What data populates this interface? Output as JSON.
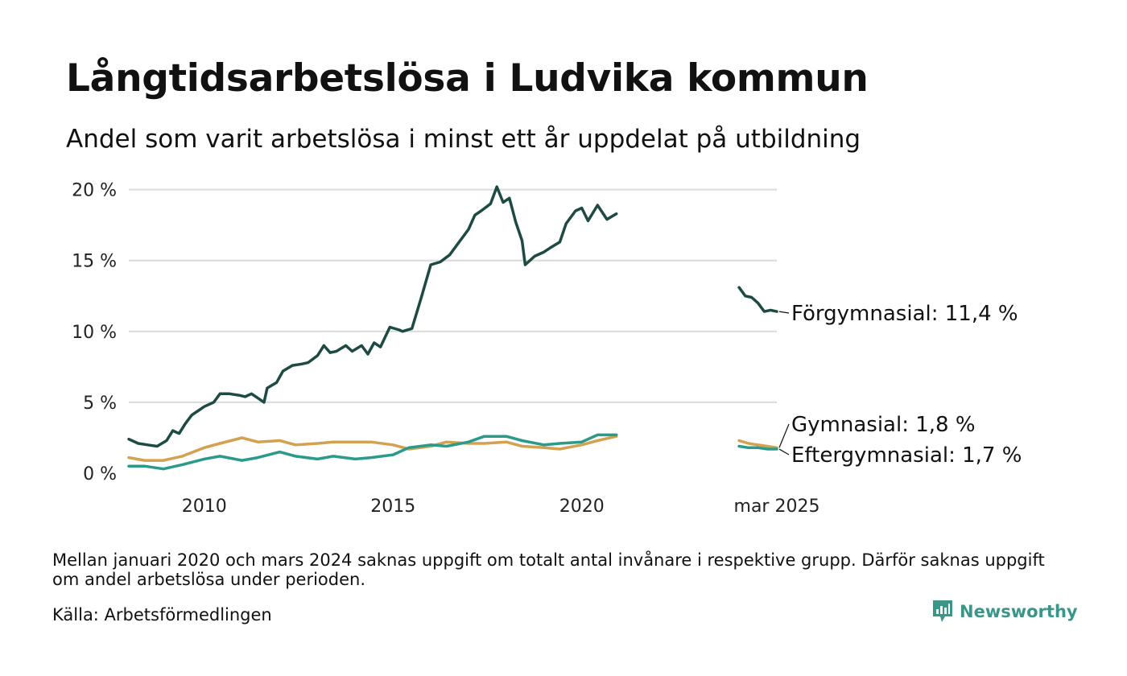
{
  "header": {
    "title": "Långtidsarbetslösa i Ludvika kommun",
    "subtitle": "Andel som varit arbetslösa i minst ett år uppdelat på utbildning"
  },
  "footer": {
    "note": "Mellan januari 2020 och mars 2024 saknas uppgift om totalt antal invånare i respektive grupp. Därför saknas uppgift om andel arbetslösa under perioden.",
    "source": "Källa: Arbetsförmedlingen",
    "brand": "Newsworthy",
    "brand_color": "#3a9688"
  },
  "chart_data": {
    "type": "line",
    "title": "Långtidsarbetslösa i Ludvika kommun",
    "subtitle": "Andel som varit arbetslösa i minst ett år uppdelat på utbildning",
    "xlabel": "",
    "ylabel": "",
    "y_ticks": [
      {
        "value": 0,
        "label": "0 %"
      },
      {
        "value": 5,
        "label": "5 %"
      },
      {
        "value": 10,
        "label": "10 %"
      },
      {
        "value": 15,
        "label": "15 %"
      },
      {
        "value": 20,
        "label": "20 %"
      }
    ],
    "x_ticks": [
      {
        "value": "2010-01",
        "label": "2010"
      },
      {
        "value": "2015-01",
        "label": "2015"
      },
      {
        "value": "2020-01",
        "label": "2020"
      },
      {
        "value": "2025-03",
        "label": "mar 2025"
      }
    ],
    "xlim": [
      "2008-01",
      "2025-03"
    ],
    "ylim": [
      0,
      21
    ],
    "grid": "horizontal",
    "legend": "direct labels at right end of lines",
    "series": [
      {
        "name": "Förgymnasial",
        "end_label": "Förgymnasial: 11,4 %",
        "color": "#1e4a44",
        "segments": [
          [
            [
              "2008-01",
              2.4
            ],
            [
              "2008-04",
              2.1
            ],
            [
              "2008-07",
              2.0
            ],
            [
              "2008-10",
              1.9
            ],
            [
              "2009-01",
              2.3
            ],
            [
              "2009-03",
              3.0
            ],
            [
              "2009-05",
              2.8
            ],
            [
              "2009-07",
              3.5
            ],
            [
              "2009-09",
              4.1
            ],
            [
              "2009-11",
              4.4
            ],
            [
              "2010-01",
              4.7
            ],
            [
              "2010-04",
              5.0
            ],
            [
              "2010-06",
              5.6
            ],
            [
              "2010-09",
              5.6
            ],
            [
              "2010-12",
              5.5
            ],
            [
              "2011-02",
              5.4
            ],
            [
              "2011-04",
              5.6
            ],
            [
              "2011-06",
              5.3
            ],
            [
              "2011-08",
              5.0
            ],
            [
              "2011-09",
              6.0
            ],
            [
              "2011-12",
              6.4
            ],
            [
              "2012-02",
              7.2
            ],
            [
              "2012-05",
              7.6
            ],
            [
              "2012-08",
              7.7
            ],
            [
              "2012-10",
              7.8
            ],
            [
              "2013-01",
              8.3
            ],
            [
              "2013-03",
              9.0
            ],
            [
              "2013-05",
              8.5
            ],
            [
              "2013-07",
              8.6
            ],
            [
              "2013-10",
              9.0
            ],
            [
              "2013-12",
              8.6
            ],
            [
              "2014-03",
              9.0
            ],
            [
              "2014-05",
              8.4
            ],
            [
              "2014-07",
              9.2
            ],
            [
              "2014-09",
              8.9
            ],
            [
              "2014-12",
              10.3
            ],
            [
              "2015-03",
              10.1
            ],
            [
              "2015-04",
              10.0
            ],
            [
              "2015-07",
              10.2
            ],
            [
              "2015-10",
              12.4
            ],
            [
              "2016-01",
              14.7
            ],
            [
              "2016-04",
              14.9
            ],
            [
              "2016-07",
              15.4
            ],
            [
              "2016-10",
              16.3
            ],
            [
              "2017-01",
              17.2
            ],
            [
              "2017-03",
              18.2
            ],
            [
              "2017-05",
              18.5
            ],
            [
              "2017-08",
              19.0
            ],
            [
              "2017-10",
              20.2
            ],
            [
              "2017-12",
              19.1
            ],
            [
              "2018-02",
              19.4
            ],
            [
              "2018-04",
              17.7
            ],
            [
              "2018-06",
              16.4
            ],
            [
              "2018-07",
              14.7
            ],
            [
              "2018-10",
              15.3
            ],
            [
              "2019-01",
              15.6
            ],
            [
              "2019-03",
              15.9
            ],
            [
              "2019-06",
              16.3
            ],
            [
              "2019-08",
              17.6
            ],
            [
              "2019-11",
              18.5
            ],
            [
              "2020-01",
              18.7
            ],
            [
              "2020-03",
              17.8
            ],
            [
              "2020-06",
              18.9
            ],
            [
              "2020-09",
              17.9
            ],
            [
              "2020-12",
              18.3
            ]
          ],
          [
            [
              "2024-03",
              13.1
            ],
            [
              "2024-05",
              12.5
            ],
            [
              "2024-07",
              12.4
            ],
            [
              "2024-09",
              12.0
            ],
            [
              "2024-11",
              11.4
            ],
            [
              "2025-01",
              11.5
            ],
            [
              "2025-03",
              11.4
            ]
          ]
        ]
      },
      {
        "name": "Gymnasial",
        "end_label": "Gymnasial:  1,8 %",
        "color": "#d4a150",
        "segments": [
          [
            [
              "2008-01",
              1.1
            ],
            [
              "2008-06",
              0.9
            ],
            [
              "2008-12",
              0.9
            ],
            [
              "2009-06",
              1.2
            ],
            [
              "2010-01",
              1.8
            ],
            [
              "2010-06",
              2.1
            ],
            [
              "2011-01",
              2.5
            ],
            [
              "2011-06",
              2.2
            ],
            [
              "2012-01",
              2.3
            ],
            [
              "2012-06",
              2.0
            ],
            [
              "2013-01",
              2.1
            ],
            [
              "2013-06",
              2.2
            ],
            [
              "2014-01",
              2.2
            ],
            [
              "2014-06",
              2.2
            ],
            [
              "2015-01",
              2.0
            ],
            [
              "2015-06",
              1.7
            ],
            [
              "2016-01",
              1.9
            ],
            [
              "2016-06",
              2.2
            ],
            [
              "2017-01",
              2.1
            ],
            [
              "2017-06",
              2.1
            ],
            [
              "2018-01",
              2.2
            ],
            [
              "2018-06",
              1.9
            ],
            [
              "2019-01",
              1.8
            ],
            [
              "2019-06",
              1.7
            ],
            [
              "2020-01",
              2.0
            ],
            [
              "2020-06",
              2.3
            ],
            [
              "2020-12",
              2.6
            ]
          ],
          [
            [
              "2024-03",
              2.3
            ],
            [
              "2024-06",
              2.1
            ],
            [
              "2024-09",
              2.0
            ],
            [
              "2024-12",
              1.9
            ],
            [
              "2025-03",
              1.8
            ]
          ]
        ]
      },
      {
        "name": "Eftergymnasial",
        "end_label": "Eftergymnasial:  1,7 %",
        "color": "#2a9a8a",
        "segments": [
          [
            [
              "2008-01",
              0.5
            ],
            [
              "2008-06",
              0.5
            ],
            [
              "2008-12",
              0.3
            ],
            [
              "2009-06",
              0.6
            ],
            [
              "2010-01",
              1.0
            ],
            [
              "2010-06",
              1.2
            ],
            [
              "2011-01",
              0.9
            ],
            [
              "2011-06",
              1.1
            ],
            [
              "2012-01",
              1.5
            ],
            [
              "2012-06",
              1.2
            ],
            [
              "2013-01",
              1.0
            ],
            [
              "2013-06",
              1.2
            ],
            [
              "2014-01",
              1.0
            ],
            [
              "2014-06",
              1.1
            ],
            [
              "2015-01",
              1.3
            ],
            [
              "2015-06",
              1.8
            ],
            [
              "2016-01",
              2.0
            ],
            [
              "2016-06",
              1.9
            ],
            [
              "2017-01",
              2.2
            ],
            [
              "2017-06",
              2.6
            ],
            [
              "2018-01",
              2.6
            ],
            [
              "2018-06",
              2.3
            ],
            [
              "2019-01",
              2.0
            ],
            [
              "2019-06",
              2.1
            ],
            [
              "2020-01",
              2.2
            ],
            [
              "2020-06",
              2.7
            ],
            [
              "2020-12",
              2.7
            ]
          ],
          [
            [
              "2024-03",
              1.9
            ],
            [
              "2024-06",
              1.8
            ],
            [
              "2024-09",
              1.8
            ],
            [
              "2024-12",
              1.7
            ],
            [
              "2025-03",
              1.7
            ]
          ]
        ]
      }
    ]
  }
}
